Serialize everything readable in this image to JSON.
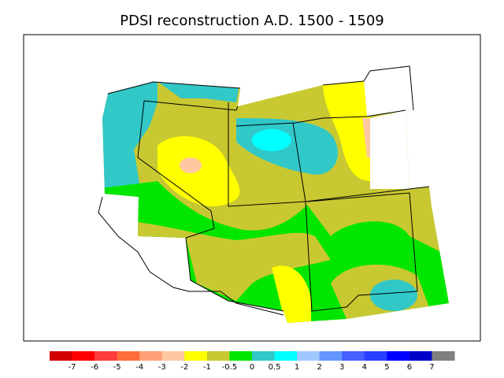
{
  "title": "PDSI reconstruction A.D. 1500 - 1509",
  "colorbar": {
    "labels": [
      -7,
      -6,
      -5,
      -4,
      -3,
      -2,
      -1,
      -0.5,
      0,
      0.5,
      1,
      2,
      3,
      4,
      5,
      6,
      7
    ],
    "colors": [
      "#d20000",
      "#ff0000",
      "#ff3c3c",
      "#ff6e3c",
      "#ffa078",
      "#ffc8a0",
      "#ffff00",
      "#c8c832",
      "#00e600",
      "#32c8c8",
      "#00ffff",
      "#a0c8ff",
      "#6496ff",
      "#4660ff",
      "#2840ff",
      "#0000ff",
      "#0000c8",
      "#808080"
    ]
  }
}
